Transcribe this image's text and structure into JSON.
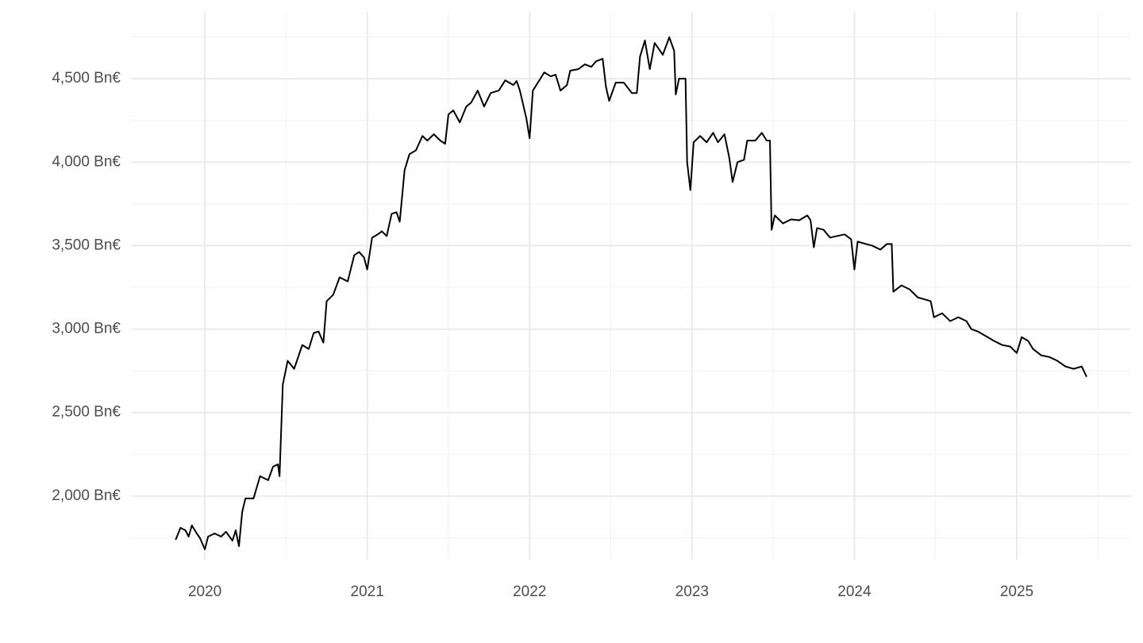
{
  "chart_data": {
    "type": "line",
    "x": [
      2019.82,
      2019.85,
      2019.88,
      2019.9,
      2019.92,
      2019.95,
      2019.97,
      2020.0,
      2020.02,
      2020.06,
      2020.1,
      2020.13,
      2020.17,
      2020.19,
      2020.21,
      2020.23,
      2020.25,
      2020.3,
      2020.34,
      2020.39,
      2020.42,
      2020.45,
      2020.46,
      2020.48,
      2020.51,
      2020.55,
      2020.6,
      2020.64,
      2020.67,
      2020.7,
      2020.73,
      2020.75,
      2020.79,
      2020.83,
      2020.88,
      2020.92,
      2020.95,
      2020.98,
      2021.0,
      2021.03,
      2021.07,
      2021.09,
      2021.12,
      2021.15,
      2021.18,
      2021.2,
      2021.23,
      2021.26,
      2021.3,
      2021.34,
      2021.37,
      2021.41,
      2021.45,
      2021.48,
      2021.5,
      2021.53,
      2021.57,
      2021.61,
      2021.64,
      2021.68,
      2021.72,
      2021.76,
      2021.81,
      2021.85,
      2021.9,
      2021.92,
      2021.94,
      2021.98,
      2022.0,
      2022.02,
      2022.06,
      2022.09,
      2022.13,
      2022.16,
      2022.19,
      2022.23,
      2022.25,
      2022.3,
      2022.34,
      2022.38,
      2022.41,
      2022.45,
      2022.47,
      2022.49,
      2022.53,
      2022.58,
      2022.63,
      2022.66,
      2022.68,
      2022.71,
      2022.74,
      2022.77,
      2022.82,
      2022.86,
      2022.89,
      2022.9,
      2022.92,
      2022.96,
      2022.97,
      2022.99,
      2023.01,
      2023.05,
      2023.09,
      2023.13,
      2023.16,
      2023.2,
      2023.23,
      2023.25,
      2023.28,
      2023.32,
      2023.34,
      2023.39,
      2023.43,
      2023.46,
      2023.48,
      2023.49,
      2023.51,
      2023.56,
      2023.61,
      2023.66,
      2023.71,
      2023.73,
      2023.75,
      2023.77,
      2023.81,
      2023.85,
      2023.89,
      2023.94,
      2023.98,
      2024.0,
      2024.02,
      2024.07,
      2024.11,
      2024.16,
      2024.2,
      2024.23,
      2024.24,
      2024.29,
      2024.34,
      2024.39,
      2024.44,
      2024.47,
      2024.49,
      2024.54,
      2024.59,
      2024.64,
      2024.69,
      2024.72,
      2024.76,
      2024.82,
      2024.86,
      2024.91,
      2024.96,
      2025.0,
      2025.03,
      2025.07,
      2025.1,
      2025.15,
      2025.2,
      2025.25,
      2025.3,
      2025.35,
      2025.4,
      2025.43
    ],
    "series": [
      {
        "color": "#000000",
        "values": [
          1738,
          1810,
          1795,
          1757,
          1824,
          1776,
          1748,
          1681,
          1757,
          1776,
          1757,
          1786,
          1733,
          1795,
          1700,
          1905,
          1986,
          1986,
          2119,
          2095,
          2176,
          2190,
          2119,
          2667,
          2810,
          2762,
          2905,
          2881,
          2976,
          2986,
          2919,
          3167,
          3205,
          3310,
          3286,
          3443,
          3462,
          3429,
          3357,
          3548,
          3571,
          3586,
          3557,
          3690,
          3700,
          3643,
          3952,
          4048,
          4071,
          4157,
          4129,
          4167,
          4129,
          4110,
          4286,
          4310,
          4238,
          4333,
          4357,
          4429,
          4333,
          4414,
          4429,
          4490,
          4462,
          4486,
          4429,
          4262,
          4143,
          4429,
          4490,
          4538,
          4514,
          4524,
          4429,
          4462,
          4548,
          4557,
          4586,
          4571,
          4605,
          4619,
          4452,
          4367,
          4476,
          4476,
          4414,
          4414,
          4633,
          4729,
          4557,
          4714,
          4643,
          4748,
          4667,
          4405,
          4500,
          4500,
          4000,
          3833,
          4119,
          4157,
          4119,
          4176,
          4119,
          4167,
          4024,
          3881,
          4000,
          4014,
          4129,
          4129,
          4176,
          4129,
          4129,
          3595,
          3681,
          3633,
          3657,
          3652,
          3681,
          3652,
          3490,
          3605,
          3595,
          3548,
          3557,
          3567,
          3538,
          3357,
          3524,
          3510,
          3500,
          3476,
          3510,
          3510,
          3224,
          3262,
          3238,
          3190,
          3176,
          3167,
          3071,
          3095,
          3048,
          3071,
          3048,
          3000,
          2986,
          2952,
          2929,
          2905,
          2895,
          2857,
          2952,
          2929,
          2881,
          2843,
          2833,
          2810,
          2776,
          2762,
          2776,
          2714
        ]
      }
    ],
    "xlim": [
      2019.545,
      2025.704
    ],
    "xticks": [
      2020,
      2021,
      2022,
      2023,
      2024,
      2025
    ],
    "xticks_minor": [
      2020.5,
      2021.5,
      2022.5,
      2023.5,
      2024.5,
      2025.5
    ],
    "ylim": [
      1619,
      4900
    ],
    "yticks": [
      {
        "value": 2000,
        "label": "2,000 Bn€"
      },
      {
        "value": 2500,
        "label": "2,500 Bn€"
      },
      {
        "value": 3000,
        "label": "3,000 Bn€"
      },
      {
        "value": 3500,
        "label": "3,500 Bn€"
      },
      {
        "value": 4000,
        "label": "4,000 Bn€"
      },
      {
        "value": 4500,
        "label": "4,500 Bn€"
      }
    ],
    "yticks_minor": [
      1750,
      2250,
      2750,
      3250,
      3750,
      4250,
      4750
    ],
    "grid": true
  }
}
